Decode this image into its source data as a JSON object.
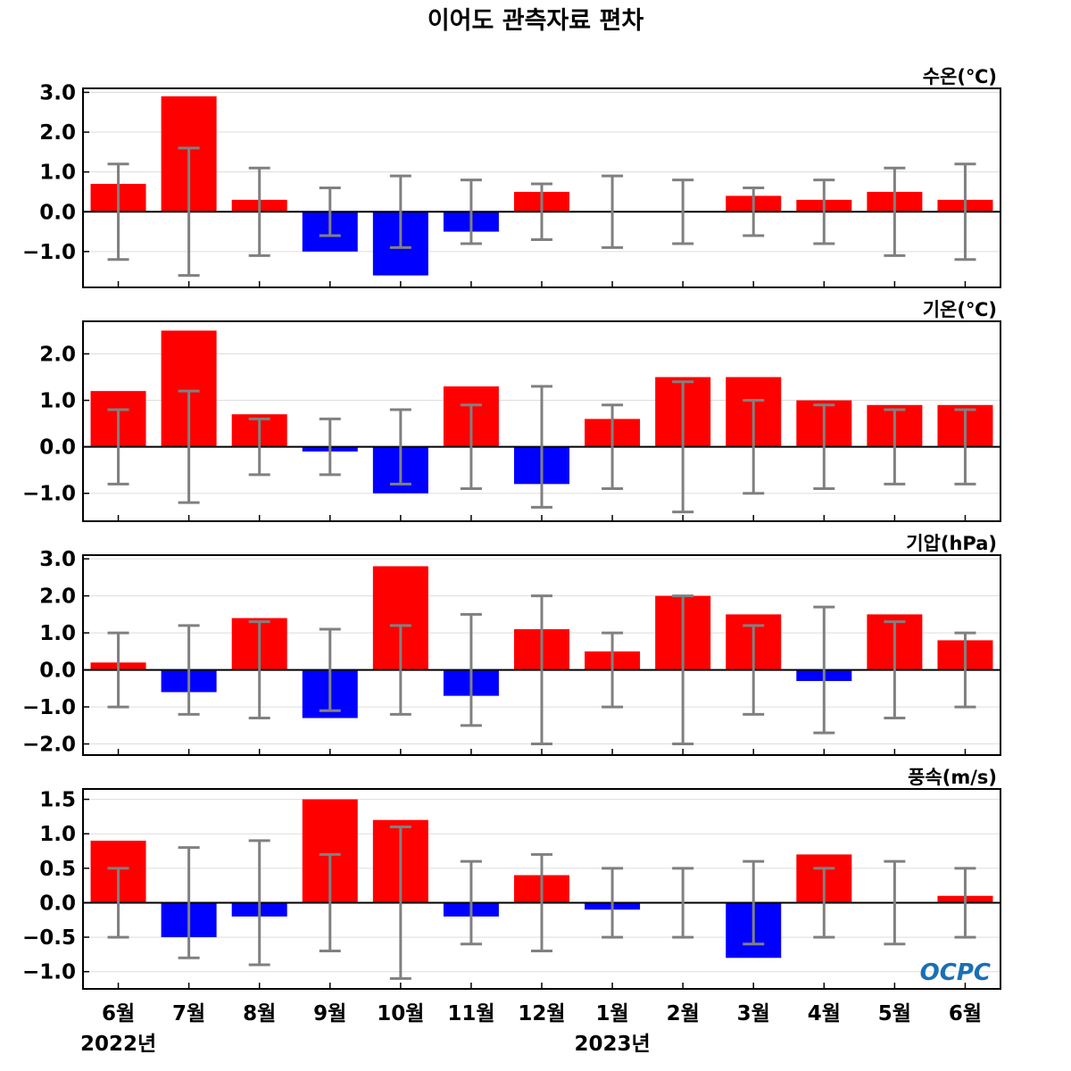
{
  "chart_data": {
    "type": "bar",
    "title": "이어도 관측자료 편차",
    "categories": [
      "6월",
      "7월",
      "8월",
      "9월",
      "10월",
      "11월",
      "12월",
      "1월",
      "2월",
      "3월",
      "4월",
      "5월",
      "6월"
    ],
    "year_labels": [
      {
        "label": "2022년",
        "category_index": 0
      },
      {
        "label": "2023년",
        "category_index": 7
      }
    ],
    "colors": {
      "positive": "#ff0000",
      "negative": "#0000ff",
      "error_bar": "#808080",
      "zero_line": "#000000",
      "grid": "#dddddd"
    },
    "grid": true,
    "logo": "OCPC",
    "panels": [
      {
        "label": "수온(℃)",
        "ylim": [
          -1.9,
          3.1
        ],
        "yticks": [
          -1.0,
          0.0,
          1.0,
          2.0,
          3.0
        ],
        "tick_decimals": 1,
        "values": [
          0.7,
          2.9,
          0.3,
          -1.0,
          -1.6,
          -0.5,
          0.5,
          0.0,
          0.0,
          0.4,
          0.3,
          0.5,
          0.3
        ],
        "error_range": [
          [
            -1.2,
            1.2
          ],
          [
            -1.6,
            1.6
          ],
          [
            -1.1,
            1.1
          ],
          [
            -0.6,
            0.6
          ],
          [
            -0.9,
            0.9
          ],
          [
            -0.8,
            0.8
          ],
          [
            -0.7,
            0.7
          ],
          [
            -0.9,
            0.9
          ],
          [
            -0.8,
            0.8
          ],
          [
            -0.6,
            0.6
          ],
          [
            -0.8,
            0.8
          ],
          [
            -1.1,
            1.1
          ],
          [
            -1.2,
            1.2
          ]
        ]
      },
      {
        "label": "기온(℃)",
        "ylim": [
          -1.6,
          2.7
        ],
        "yticks": [
          -1.0,
          0.0,
          1.0,
          2.0
        ],
        "tick_decimals": 1,
        "values": [
          1.2,
          2.5,
          0.7,
          -0.1,
          -1.0,
          1.3,
          -0.8,
          0.6,
          1.5,
          1.5,
          1.0,
          0.9,
          0.9
        ],
        "error_range": [
          [
            -0.8,
            0.8
          ],
          [
            -1.2,
            1.2
          ],
          [
            -0.6,
            0.6
          ],
          [
            -0.6,
            0.6
          ],
          [
            -0.8,
            0.8
          ],
          [
            -0.9,
            0.9
          ],
          [
            -1.3,
            1.3
          ],
          [
            -0.9,
            0.9
          ],
          [
            -1.4,
            1.4
          ],
          [
            -1.0,
            1.0
          ],
          [
            -0.9,
            0.9
          ],
          [
            -0.8,
            0.8
          ],
          [
            -0.8,
            0.8
          ]
        ]
      },
      {
        "label": "기압(hPa)",
        "ylim": [
          -2.3,
          3.1
        ],
        "yticks": [
          -2.0,
          -1.0,
          0.0,
          1.0,
          2.0,
          3.0
        ],
        "tick_decimals": 1,
        "values": [
          0.2,
          -0.6,
          1.4,
          -1.3,
          2.8,
          -0.7,
          1.1,
          0.5,
          2.0,
          1.5,
          -0.3,
          1.5,
          0.8
        ],
        "error_range": [
          [
            -1.0,
            1.0
          ],
          [
            -1.2,
            1.2
          ],
          [
            -1.3,
            1.3
          ],
          [
            -1.1,
            1.1
          ],
          [
            -1.2,
            1.2
          ],
          [
            -1.5,
            1.5
          ],
          [
            -2.0,
            2.0
          ],
          [
            -1.0,
            1.0
          ],
          [
            -2.0,
            2.0
          ],
          [
            -1.2,
            1.2
          ],
          [
            -1.7,
            1.7
          ],
          [
            -1.3,
            1.3
          ],
          [
            -1.0,
            1.0
          ]
        ]
      },
      {
        "label": "풍속(m/s)",
        "ylim": [
          -1.25,
          1.65
        ],
        "yticks": [
          -1.0,
          -0.5,
          0.0,
          0.5,
          1.0,
          1.5
        ],
        "tick_decimals": 1,
        "values": [
          0.9,
          -0.5,
          -0.2,
          1.5,
          1.2,
          -0.2,
          0.4,
          -0.1,
          0.0,
          -0.8,
          0.7,
          0.0,
          0.1
        ],
        "error_range": [
          [
            -0.5,
            0.5
          ],
          [
            -0.8,
            0.8
          ],
          [
            -0.9,
            0.9
          ],
          [
            -0.7,
            0.7
          ],
          [
            -1.1,
            1.1
          ],
          [
            -0.6,
            0.6
          ],
          [
            -0.7,
            0.7
          ],
          [
            -0.5,
            0.5
          ],
          [
            -0.5,
            0.5
          ],
          [
            -0.6,
            0.6
          ],
          [
            -0.5,
            0.5
          ],
          [
            -0.6,
            0.6
          ],
          [
            -0.5,
            0.5
          ]
        ]
      }
    ]
  }
}
